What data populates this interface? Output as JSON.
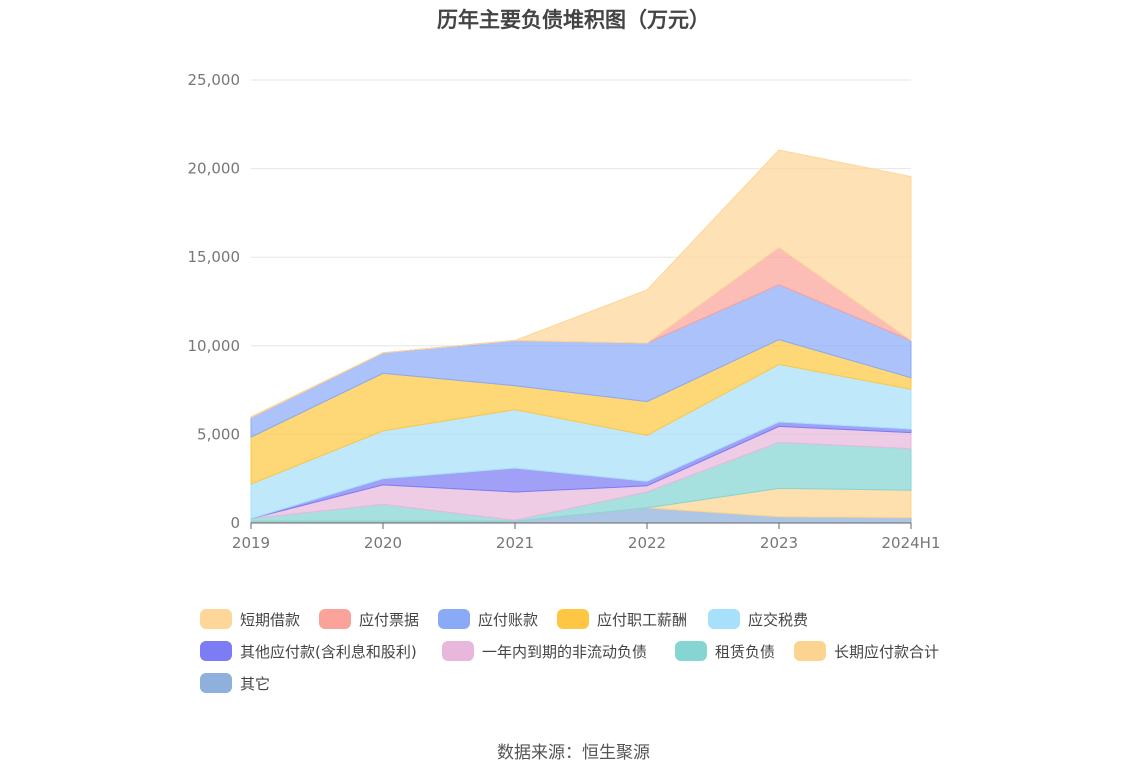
{
  "chart_data": {
    "type": "area",
    "stacked": true,
    "title": "历年主要负债堆积图（万元）",
    "categories": [
      "2019",
      "2020",
      "2021",
      "2022",
      "2023",
      "2024H1"
    ],
    "ylim": [
      0,
      25000
    ],
    "yticks": [
      0,
      5000,
      10000,
      15000,
      20000,
      25000
    ],
    "ytick_labels": [
      "0",
      "5,000",
      "10,000",
      "15,000",
      "20,000",
      "25,000"
    ],
    "grid": true,
    "legend_position": "bottom",
    "series": [
      {
        "name": "其它",
        "color": "#8fb0dc",
        "values": [
          100,
          100,
          100,
          850,
          350,
          300
        ]
      },
      {
        "name": "长期应付款合计",
        "color": "#fcd48f",
        "values": [
          0,
          0,
          0,
          0,
          1600,
          1550
        ]
      },
      {
        "name": "租赁负债",
        "color": "#85d6d3",
        "values": [
          150,
          950,
          50,
          900,
          2600,
          2350
        ]
      },
      {
        "name": "一年内到期的非流动负债",
        "color": "#e8b8dc",
        "values": [
          0,
          1100,
          1600,
          350,
          900,
          900
        ]
      },
      {
        "name": "其他应付款(含利息和股利)",
        "color": "#7c7cf4",
        "values": [
          0,
          350,
          1350,
          250,
          250,
          200
        ]
      },
      {
        "name": "应交税费",
        "color": "#a6e0fa",
        "values": [
          1950,
          2700,
          3300,
          2600,
          3250,
          2250
        ]
      },
      {
        "name": "应付职工薪酬",
        "color": "#fec743",
        "values": [
          2650,
          3250,
          1350,
          1900,
          1400,
          650
        ]
      },
      {
        "name": "应付账款",
        "color": "#8aaaf8",
        "values": [
          1100,
          1150,
          2550,
          3300,
          3100,
          2100
        ]
      },
      {
        "name": "应付票据",
        "color": "#fba39a",
        "values": [
          0,
          0,
          0,
          0,
          2100,
          0
        ]
      },
      {
        "name": "短期借款",
        "color": "#fdd699",
        "values": [
          50,
          0,
          0,
          3000,
          5500,
          9250
        ]
      }
    ]
  },
  "legend": {
    "items": [
      {
        "name": "短期借款",
        "color": "#fdd699"
      },
      {
        "name": "应付票据",
        "color": "#fba39a"
      },
      {
        "name": "应付账款",
        "color": "#8aaaf8"
      },
      {
        "name": "应付职工薪酬",
        "color": "#fec743"
      },
      {
        "name": "应交税费",
        "color": "#a6e0fa"
      },
      {
        "name": "其他应付款(含利息和股利)",
        "color": "#7c7cf4"
      },
      {
        "name": "一年内到期的非流动负债",
        "color": "#e8b8dc"
      },
      {
        "name": "租赁负债",
        "color": "#85d6d3"
      },
      {
        "name": "长期应付款合计",
        "color": "#fcd48f"
      },
      {
        "name": "其它",
        "color": "#8fb0dc"
      }
    ]
  },
  "source_note": "数据来源：恒生聚源"
}
